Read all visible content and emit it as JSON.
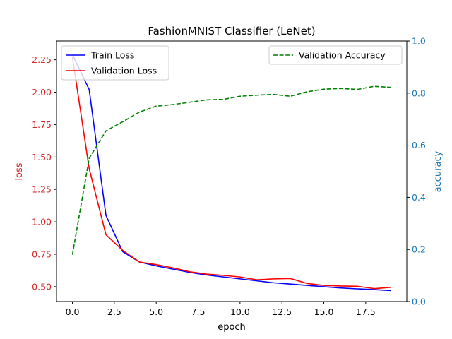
{
  "chart_data": {
    "type": "line",
    "title": "FashionMNIST Classifier (LeNet)",
    "xlabel": "epoch",
    "ylabel_left": "loss",
    "ylabel_right": "accuracy",
    "xlim": [
      -0.95,
      19.95
    ],
    "ylim_left": [
      0.385,
      2.395
    ],
    "ylim_right": [
      0.0,
      1.0
    ],
    "x_ticks": [
      "0.0",
      "2.5",
      "5.0",
      "7.5",
      "10.0",
      "12.5",
      "15.0",
      "17.5"
    ],
    "y_left_ticks": [
      "0.50",
      "0.75",
      "1.00",
      "1.25",
      "1.50",
      "1.75",
      "2.00",
      "2.25"
    ],
    "y_right_ticks": [
      "0.0",
      "0.2",
      "0.4",
      "0.6",
      "0.8",
      "1.0"
    ],
    "x": [
      0,
      1,
      2,
      3,
      4,
      5,
      6,
      7,
      8,
      9,
      10,
      11,
      12,
      13,
      14,
      15,
      16,
      17,
      18,
      19
    ],
    "series": [
      {
        "name": "Train Loss",
        "axis": "left",
        "color": "#0000ff",
        "style": "solid",
        "values": [
          2.29,
          2.02,
          1.05,
          0.77,
          0.69,
          0.66,
          0.635,
          0.61,
          0.59,
          0.575,
          0.56,
          0.545,
          0.53,
          0.52,
          0.51,
          0.5,
          0.49,
          0.483,
          0.477,
          0.47
        ]
      },
      {
        "name": "Validation Loss",
        "axis": "left",
        "color": "#ff0000",
        "style": "solid",
        "values": [
          2.27,
          1.41,
          0.9,
          0.78,
          0.69,
          0.67,
          0.645,
          0.615,
          0.597,
          0.587,
          0.575,
          0.553,
          0.56,
          0.563,
          0.525,
          0.51,
          0.505,
          0.503,
          0.485,
          0.495
        ]
      },
      {
        "name": "Validation Accuracy",
        "axis": "right",
        "color": "#008000",
        "style": "dashed",
        "values": [
          0.18,
          0.55,
          0.655,
          0.69,
          0.727,
          0.75,
          0.756,
          0.765,
          0.774,
          0.776,
          0.788,
          0.792,
          0.795,
          0.788,
          0.805,
          0.815,
          0.818,
          0.814,
          0.826,
          0.822
        ]
      }
    ],
    "legend_left": "upper-left",
    "legend_right": "upper-right",
    "grid": false
  },
  "colors": {
    "loss_axis": "#d62728",
    "accuracy_axis": "#1f77b4",
    "frame": "#000000"
  }
}
